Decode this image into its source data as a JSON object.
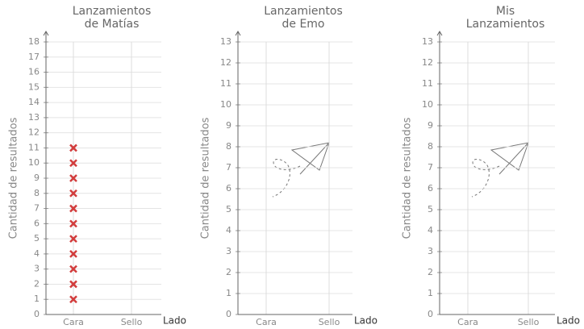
{
  "chart_data": [
    {
      "type": "dot",
      "title": [
        "Lanzamientos",
        "de Matías"
      ],
      "ylabel": "Cantidad de resultados",
      "xlabel": "Lado",
      "categories": [
        "Cara",
        "Sello"
      ],
      "values": [
        11,
        0
      ],
      "color": "#d23c3c",
      "ylim": [
        0,
        18
      ],
      "yticks": [
        0,
        1,
        2,
        3,
        4,
        5,
        6,
        7,
        8,
        9,
        10,
        11,
        12,
        13,
        14,
        15,
        16,
        17,
        18
      ]
    },
    {
      "type": "dot",
      "title": [
        "Lanzamientos",
        "de Emo"
      ],
      "ylabel": "Cantidad de resultados",
      "xlabel": "Lado",
      "categories": [
        "Cara",
        "Sello"
      ],
      "ylim": [
        0,
        13
      ],
      "yticks": [
        0,
        1,
        2,
        3,
        4,
        5,
        6,
        7,
        8,
        9,
        10,
        11,
        12,
        13
      ]
    },
    {
      "type": "dot",
      "title": [
        "Mis",
        "Lanzamientos"
      ],
      "ylabel": "Cantidad de resultados",
      "xlabel": "Lado",
      "categories": [
        "Cara",
        "Sello"
      ],
      "ylim": [
        0,
        13
      ],
      "yticks": [
        0,
        1,
        2,
        3,
        4,
        5,
        6,
        7,
        8,
        9,
        10,
        11,
        12,
        13
      ]
    }
  ]
}
